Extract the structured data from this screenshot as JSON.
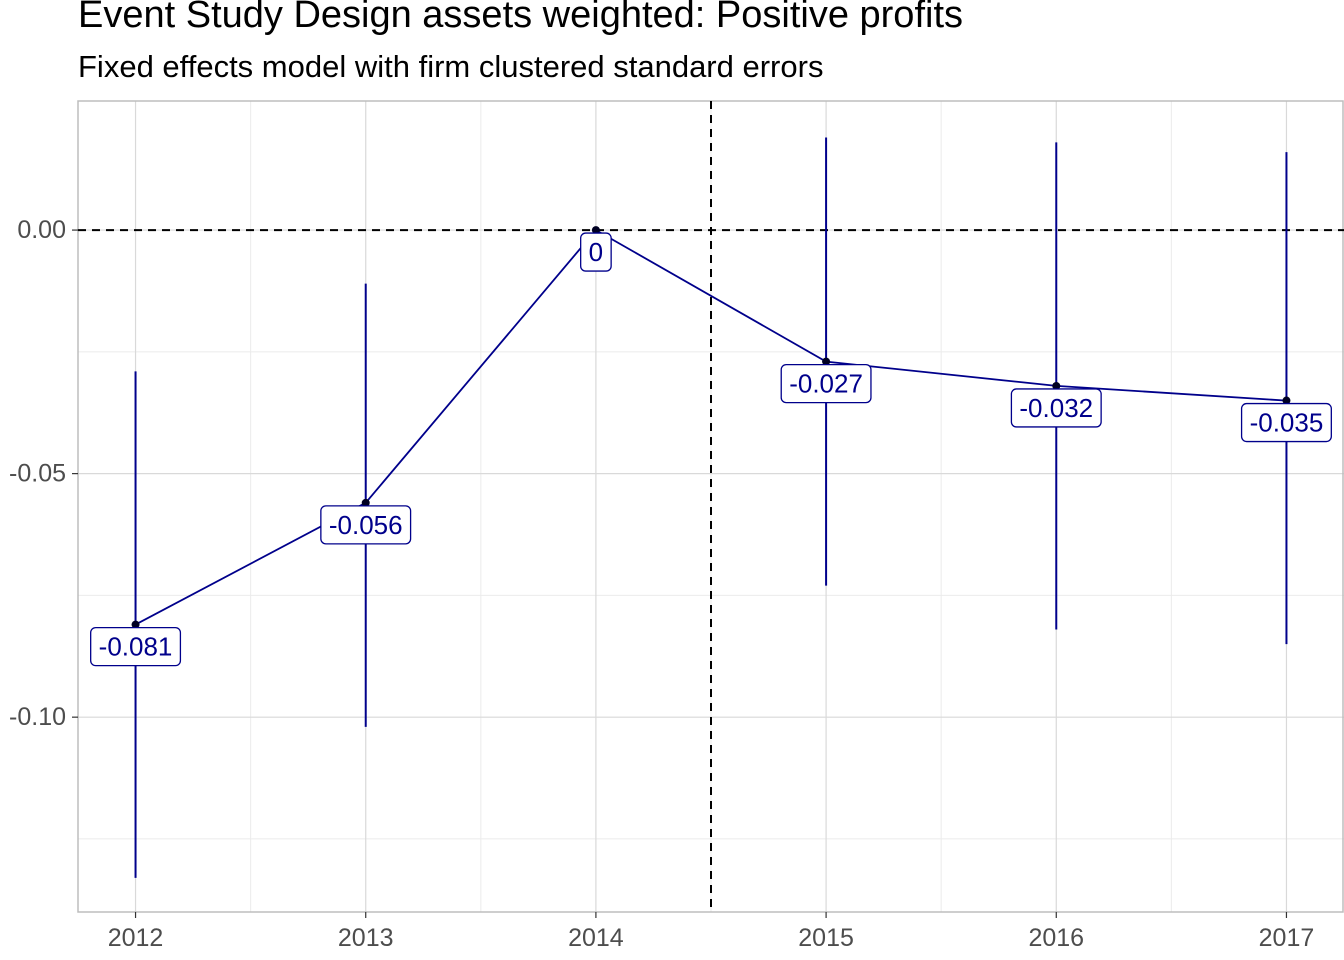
{
  "chart_data": {
    "type": "line",
    "title": "Event Study Design assets weighted: Positive profits",
    "subtitle": "Fixed effects model with firm clustered standard errors",
    "xlabel": "",
    "ylabel": "",
    "x": [
      2012,
      2013,
      2014,
      2015,
      2016,
      2017
    ],
    "x_tick_labels": [
      "2012",
      "2013",
      "2014",
      "2015",
      "2016",
      "2017"
    ],
    "series": [
      {
        "values": [
          -0.081,
          -0.056,
          0.0,
          -0.027,
          -0.032,
          -0.035
        ],
        "labels": [
          "-0.081",
          "-0.056",
          "0",
          "-0.027",
          "-0.032",
          "-0.035"
        ],
        "ci_low": [
          -0.133,
          -0.102,
          0.0,
          -0.073,
          -0.082,
          -0.085
        ],
        "ci_high": [
          -0.029,
          -0.011,
          0.0,
          0.019,
          0.018,
          0.016
        ]
      }
    ],
    "y_ticks": [
      0.0,
      -0.05,
      -0.1
    ],
    "y_tick_labels": [
      "0.00",
      "-0.05",
      "-0.10"
    ],
    "xlim": [
      2011.75,
      2017.25
    ],
    "ylim": [
      -0.14,
      0.0265
    ],
    "reference_lines": {
      "horizontal_y": 0.0,
      "vertical_x": 2014.5
    },
    "grid": true,
    "colors": {
      "series": "#00008B",
      "reference": "#000000",
      "grid": "#d9d9d9"
    }
  }
}
